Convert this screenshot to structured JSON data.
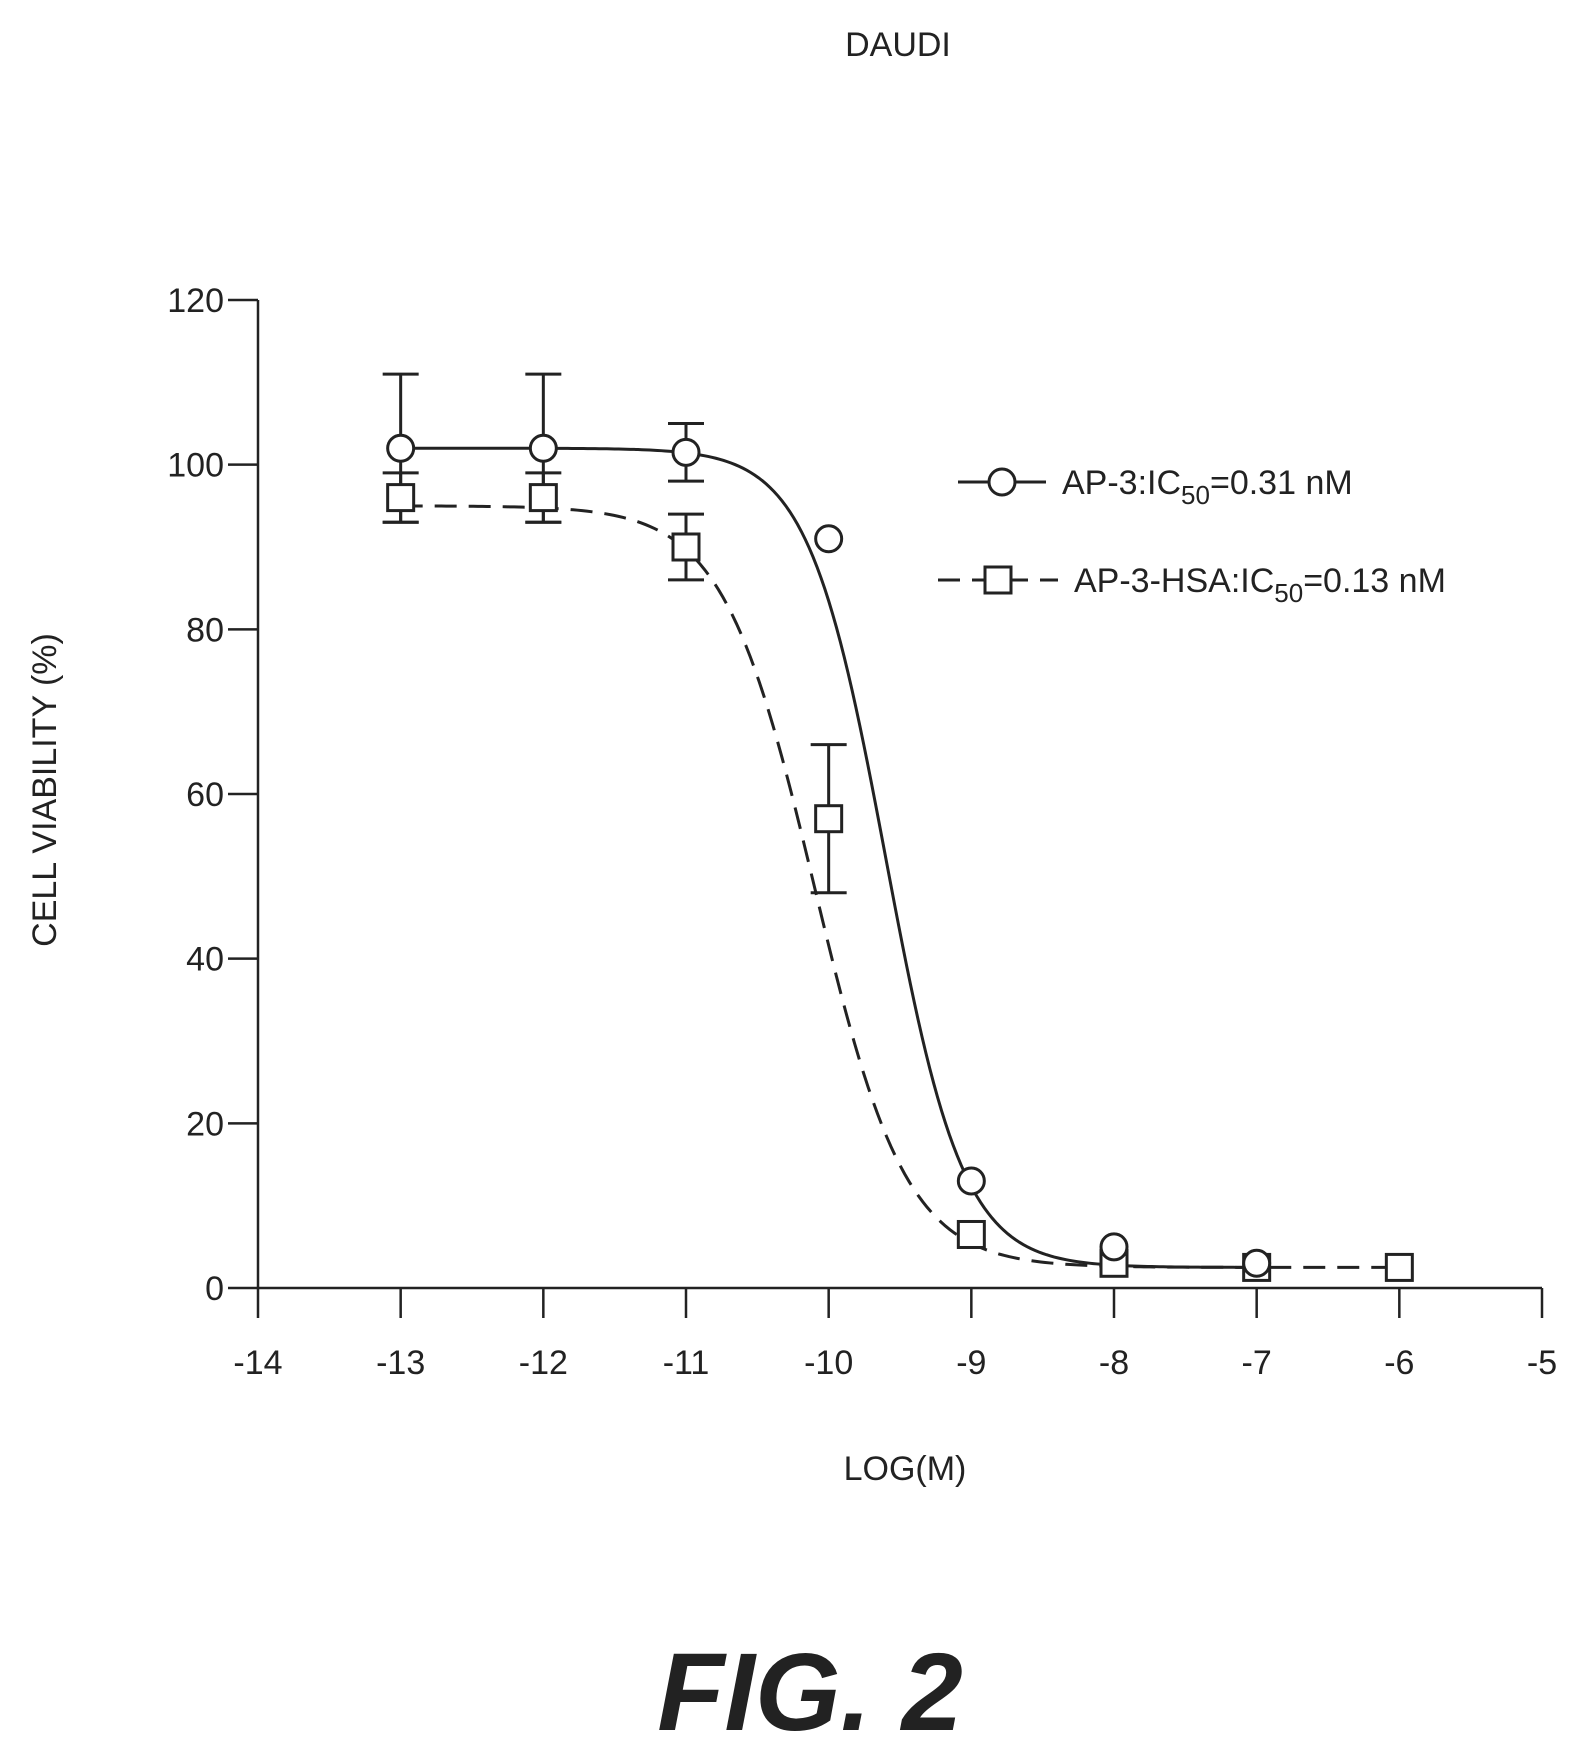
{
  "chart_data": {
    "type": "scatter",
    "title": "DAUDI",
    "xlabel": "LOG(M)",
    "ylabel": "CELL VIABILITY (%)",
    "xlim": [
      -14,
      -5
    ],
    "ylim": [
      0,
      120
    ],
    "xticks": [
      -14,
      -13,
      -12,
      -11,
      -10,
      -9,
      -8,
      -7,
      -6,
      -5
    ],
    "yticks": [
      0,
      20,
      40,
      60,
      80,
      100,
      120
    ],
    "grid": false,
    "legend_position": "top-right",
    "series": [
      {
        "name": "AP-3:IC",
        "name_sub": "50",
        "name_tail": "=0.31 nM",
        "marker": "circle",
        "line": "solid",
        "x": [
          -13,
          -12,
          -11,
          -10,
          -9,
          -8,
          -7
        ],
        "y": [
          102,
          102,
          101.5,
          91,
          13,
          5,
          3
        ],
        "err": [
          9,
          9,
          3.5,
          0,
          0,
          0,
          0
        ],
        "fit": {
          "top": 102,
          "bottom": 2.5,
          "log_ic50": -9.6,
          "hill": 1.6
        }
      },
      {
        "name": "AP-3-HSA:IC",
        "name_sub": "50",
        "name_tail": "=0.13 nM",
        "marker": "square",
        "line": "dashed",
        "x": [
          -13,
          -12,
          -11,
          -10,
          -9,
          -8,
          -7,
          -6
        ],
        "y": [
          96,
          96,
          90,
          57,
          6.5,
          3,
          2.5,
          2.5
        ],
        "err": [
          3,
          3,
          4,
          9,
          0,
          0,
          0,
          0
        ],
        "fit": {
          "top": 95,
          "bottom": 2.5,
          "log_ic50": -10.1,
          "hill": 1.35
        }
      }
    ]
  },
  "caption": "FIG. 2"
}
